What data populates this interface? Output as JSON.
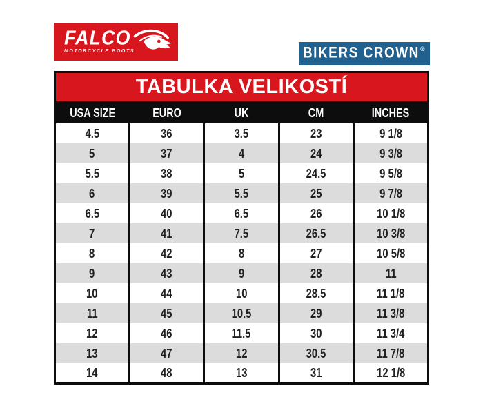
{
  "page": {
    "background_color": "#ffffff"
  },
  "logos": {
    "falco": {
      "name": "FALCO",
      "subtitle": "MOTORCYCLE BOOTS",
      "bg_color": "#d8161e",
      "text_color": "#ffffff"
    },
    "bikers_crown": {
      "name": "BIKERS CROWN",
      "registered_mark": "®",
      "bg_color": "#20618f",
      "text_color": "#ffffff"
    }
  },
  "chart_data": {
    "type": "table",
    "title": "TABULKA VELIKOSTÍ",
    "title_bg_color": "#d8161e",
    "header_bg_color": "#000000",
    "header_text_color": "#ffffff",
    "row_alt_color": "#dcdcdc",
    "columns": [
      "USA SIZE",
      "EURO",
      "UK",
      "CM",
      "INCHES"
    ],
    "rows": [
      [
        "4.5",
        "36",
        "3.5",
        "23",
        "9 1/8"
      ],
      [
        "5",
        "37",
        "4",
        "24",
        "9 3/8"
      ],
      [
        "5.5",
        "38",
        "5",
        "24.5",
        "9 5/8"
      ],
      [
        "6",
        "39",
        "5.5",
        "25",
        "9 7/8"
      ],
      [
        "6.5",
        "40",
        "6.5",
        "26",
        "10 1/8"
      ],
      [
        "7",
        "41",
        "7.5",
        "26.5",
        "10 3/8"
      ],
      [
        "8",
        "42",
        "8",
        "27",
        "10 5/8"
      ],
      [
        "9",
        "43",
        "9",
        "28",
        "11"
      ],
      [
        "10",
        "44",
        "10",
        "28.5",
        "11 1/8"
      ],
      [
        "11",
        "45",
        "10.5",
        "29",
        "11 3/8"
      ],
      [
        "12",
        "46",
        "11.5",
        "30",
        "11 3/4"
      ],
      [
        "13",
        "47",
        "12",
        "30.5",
        "11 7/8"
      ],
      [
        "14",
        "48",
        "13",
        "31",
        "12 1/8"
      ]
    ]
  }
}
